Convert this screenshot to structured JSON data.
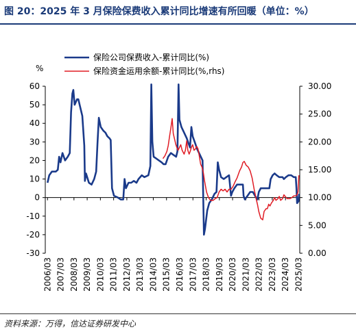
{
  "title": "图 20：2025 年 3 月保险保费收入累计同比增速有所回暖（单位：%）",
  "source": "资料来源：万得，信达证券研发中心",
  "chart_data": {
    "type": "line",
    "y_unit_label": "%",
    "left_axis": {
      "ylim": [
        -30,
        60
      ],
      "ticks": [
        "60",
        "50",
        "40",
        "30",
        "20",
        "10",
        "0",
        "-10",
        "-20",
        "-30"
      ]
    },
    "right_axis": {
      "ylim": [
        0,
        30
      ],
      "ticks": [
        "30.00",
        "25.00",
        "20.00",
        "15.00",
        "10.00",
        "5.00",
        "0.00"
      ]
    },
    "x_ticks": [
      "2006/03",
      "2007/03",
      "2008/03",
      "2009/03",
      "2010/03",
      "2011/03",
      "2012/03",
      "2013/03",
      "2014/03",
      "2015/03",
      "2016/03",
      "2017/03",
      "2018/03",
      "2019/03",
      "2020/03",
      "2021/03",
      "2022/03",
      "2023/03",
      "2024/03",
      "2025/03"
    ],
    "grid": false,
    "legend_position": "top",
    "series": [
      {
        "name": "保险公司保费收入-累计同比(%)",
        "axis": "left",
        "color": "#1a3a8a",
        "points": [
          [
            2006.17,
            8
          ],
          [
            2006.3,
            12
          ],
          [
            2006.5,
            14
          ],
          [
            2006.8,
            14
          ],
          [
            2006.95,
            15
          ],
          [
            2007.05,
            22
          ],
          [
            2007.15,
            19
          ],
          [
            2007.3,
            24
          ],
          [
            2007.5,
            20
          ],
          [
            2007.7,
            22
          ],
          [
            2007.85,
            24
          ],
          [
            2007.95,
            46
          ],
          [
            2008.05,
            56
          ],
          [
            2008.12,
            58
          ],
          [
            2008.22,
            50
          ],
          [
            2008.4,
            53
          ],
          [
            2008.5,
            53
          ],
          [
            2008.6,
            50
          ],
          [
            2008.8,
            44
          ],
          [
            2008.95,
            28
          ],
          [
            2009.0,
            9
          ],
          [
            2009.08,
            13
          ],
          [
            2009.3,
            8
          ],
          [
            2009.5,
            7
          ],
          [
            2009.7,
            10
          ],
          [
            2009.85,
            14
          ],
          [
            2009.95,
            29
          ],
          [
            2010.05,
            43
          ],
          [
            2010.2,
            38
          ],
          [
            2010.4,
            36
          ],
          [
            2010.55,
            35
          ],
          [
            2010.7,
            33
          ],
          [
            2010.85,
            32
          ],
          [
            2010.95,
            31
          ],
          [
            2011.05,
            5
          ],
          [
            2011.2,
            1
          ],
          [
            2011.5,
            0
          ],
          [
            2011.7,
            -1
          ],
          [
            2011.9,
            -1
          ],
          [
            2012.0,
            10
          ],
          [
            2012.1,
            5
          ],
          [
            2012.3,
            8
          ],
          [
            2012.5,
            8
          ],
          [
            2012.7,
            9
          ],
          [
            2012.9,
            8
          ],
          [
            2013.05,
            10
          ],
          [
            2013.3,
            12
          ],
          [
            2013.5,
            11
          ],
          [
            2013.8,
            12
          ],
          [
            2013.95,
            17
          ],
          [
            2014.02,
            61
          ],
          [
            2014.1,
            30
          ],
          [
            2014.2,
            22
          ],
          [
            2014.4,
            21
          ],
          [
            2014.6,
            20
          ],
          [
            2014.8,
            19
          ],
          [
            2014.95,
            18
          ],
          [
            2015.1,
            18
          ],
          [
            2015.3,
            22
          ],
          [
            2015.5,
            24
          ],
          [
            2015.7,
            23
          ],
          [
            2015.9,
            22
          ],
          [
            2016.0,
            25
          ],
          [
            2016.08,
            61
          ],
          [
            2016.15,
            42
          ],
          [
            2016.3,
            38
          ],
          [
            2016.5,
            35
          ],
          [
            2016.7,
            32
          ],
          [
            2016.95,
            27
          ],
          [
            2017.05,
            38
          ],
          [
            2017.15,
            33
          ],
          [
            2017.3,
            30
          ],
          [
            2017.5,
            26
          ],
          [
            2017.7,
            23
          ],
          [
            2017.9,
            20
          ],
          [
            2018.0,
            -20
          ],
          [
            2018.08,
            -17
          ],
          [
            2018.25,
            -7
          ],
          [
            2018.4,
            -3
          ],
          [
            2018.6,
            -1
          ],
          [
            2018.8,
            2
          ],
          [
            2018.95,
            3
          ],
          [
            2019.05,
            19
          ],
          [
            2019.15,
            15
          ],
          [
            2019.3,
            11
          ],
          [
            2019.5,
            10
          ],
          [
            2019.7,
            11
          ],
          [
            2019.9,
            12
          ],
          [
            2020.05,
            1
          ],
          [
            2020.15,
            3
          ],
          [
            2020.3,
            5
          ],
          [
            2020.5,
            7
          ],
          [
            2020.7,
            7
          ],
          [
            2020.95,
            7
          ],
          [
            2021.0,
            1
          ],
          [
            2021.1,
            -1
          ],
          [
            2021.3,
            1
          ],
          [
            2021.5,
            3
          ],
          [
            2021.7,
            3
          ],
          [
            2021.95,
            0
          ],
          [
            2022.05,
            -1
          ],
          [
            2022.15,
            3
          ],
          [
            2022.3,
            5
          ],
          [
            2022.5,
            5
          ],
          [
            2022.7,
            5
          ],
          [
            2022.95,
            5
          ],
          [
            2023.05,
            10
          ],
          [
            2023.2,
            12
          ],
          [
            2023.35,
            13
          ],
          [
            2023.5,
            12
          ],
          [
            2023.7,
            11
          ],
          [
            2023.95,
            11
          ],
          [
            2024.05,
            10
          ],
          [
            2024.2,
            11
          ],
          [
            2024.4,
            12
          ],
          [
            2024.6,
            12
          ],
          [
            2024.8,
            11
          ],
          [
            2024.95,
            11
          ],
          [
            2025.0,
            5
          ],
          [
            2025.05,
            -3
          ],
          [
            2025.15,
            -2
          ],
          [
            2025.2,
            2
          ]
        ]
      },
      {
        "name": "保险资金运用余额-累计同比(%,rhs)",
        "axis": "right",
        "color": "#e01b24",
        "points": [
          [
            2014.9,
            17.0
          ],
          [
            2015.05,
            17.5
          ],
          [
            2015.2,
            18.3
          ],
          [
            2015.3,
            19.3
          ],
          [
            2015.4,
            21.0
          ],
          [
            2015.5,
            22.5
          ],
          [
            2015.6,
            24.2
          ],
          [
            2015.68,
            21.5
          ],
          [
            2015.78,
            20.5
          ],
          [
            2015.88,
            19.5
          ],
          [
            2015.95,
            19.0
          ],
          [
            2016.05,
            18.5
          ],
          [
            2016.15,
            19.0
          ],
          [
            2016.25,
            19.5
          ],
          [
            2016.35,
            18.5
          ],
          [
            2016.5,
            17.8
          ],
          [
            2016.6,
            18.5
          ],
          [
            2016.7,
            20.2
          ],
          [
            2016.78,
            18.5
          ],
          [
            2016.88,
            17.8
          ],
          [
            2016.95,
            18.2
          ],
          [
            2017.05,
            19.0
          ],
          [
            2017.15,
            19.5
          ],
          [
            2017.25,
            18.5
          ],
          [
            2017.35,
            18.7
          ],
          [
            2017.45,
            19.2
          ],
          [
            2017.55,
            18.8
          ],
          [
            2017.65,
            17.5
          ],
          [
            2017.75,
            16.0
          ],
          [
            2017.85,
            15.5
          ],
          [
            2017.95,
            14.6
          ],
          [
            2018.05,
            13.0
          ],
          [
            2018.2,
            11.0
          ],
          [
            2018.35,
            10.0
          ],
          [
            2018.5,
            9.5
          ],
          [
            2018.7,
            9.5
          ],
          [
            2018.85,
            9.8
          ],
          [
            2019.0,
            10.0
          ],
          [
            2019.15,
            11.0
          ],
          [
            2019.3,
            11.5
          ],
          [
            2019.45,
            11.2
          ],
          [
            2019.6,
            11.5
          ],
          [
            2019.75,
            11.0
          ],
          [
            2019.9,
            11.5
          ],
          [
            2020.05,
            11.5
          ],
          [
            2020.2,
            12.0
          ],
          [
            2020.35,
            12.8
          ],
          [
            2020.5,
            13.5
          ],
          [
            2020.7,
            14.8
          ],
          [
            2020.85,
            15.5
          ],
          [
            2020.95,
            16.3
          ],
          [
            2021.05,
            16.5
          ],
          [
            2021.2,
            15.8
          ],
          [
            2021.35,
            15.5
          ],
          [
            2021.5,
            14.8
          ],
          [
            2021.65,
            13.5
          ],
          [
            2021.8,
            11.5
          ],
          [
            2021.95,
            9.8
          ],
          [
            2022.05,
            8.8
          ],
          [
            2022.15,
            7.5
          ],
          [
            2022.3,
            6.3
          ],
          [
            2022.45,
            6.0
          ],
          [
            2022.55,
            7.5
          ],
          [
            2022.7,
            8.0
          ],
          [
            2022.8,
            8.0
          ],
          [
            2022.9,
            8.8
          ],
          [
            2023.0,
            8.5
          ],
          [
            2023.1,
            9.0
          ],
          [
            2023.25,
            9.5
          ],
          [
            2023.35,
            10.0
          ],
          [
            2023.45,
            9.5
          ],
          [
            2023.6,
            9.8
          ],
          [
            2023.7,
            10.2
          ],
          [
            2023.8,
            9.5
          ],
          [
            2023.95,
            9.8
          ],
          [
            2024.05,
            10.5
          ],
          [
            2024.15,
            10.2
          ],
          [
            2024.3,
            9.8
          ],
          [
            2024.5,
            9.8
          ],
          [
            2024.65,
            10.0
          ],
          [
            2024.8,
            10.3
          ],
          [
            2024.95,
            10.3
          ],
          [
            2025.05,
            10.5
          ],
          [
            2025.12,
            11.0
          ],
          [
            2025.18,
            14.0
          ]
        ]
      }
    ]
  }
}
